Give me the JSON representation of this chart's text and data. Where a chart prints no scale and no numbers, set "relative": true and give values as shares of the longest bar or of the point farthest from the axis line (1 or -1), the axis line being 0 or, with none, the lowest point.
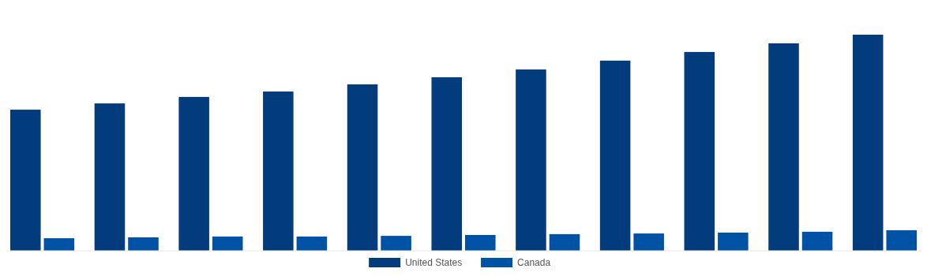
{
  "chart_data": {
    "type": "bar",
    "relative": true,
    "categories": [
      null,
      null,
      null,
      null,
      null,
      null,
      null,
      null,
      null,
      null,
      null
    ],
    "legend": "bottom",
    "series": [
      {
        "name": "United States",
        "color": "#033c7c",
        "values": [
          0.653,
          0.682,
          0.712,
          0.737,
          0.77,
          0.803,
          0.839,
          0.88,
          0.92,
          0.96,
          1
        ]
      },
      {
        "name": "Canada",
        "color": "#0052a5",
        "values": [
          0.058,
          0.062,
          0.066,
          0.066,
          0.069,
          0.073,
          0.077,
          0.08,
          0.084,
          0.088,
          0.095
        ]
      }
    ]
  }
}
